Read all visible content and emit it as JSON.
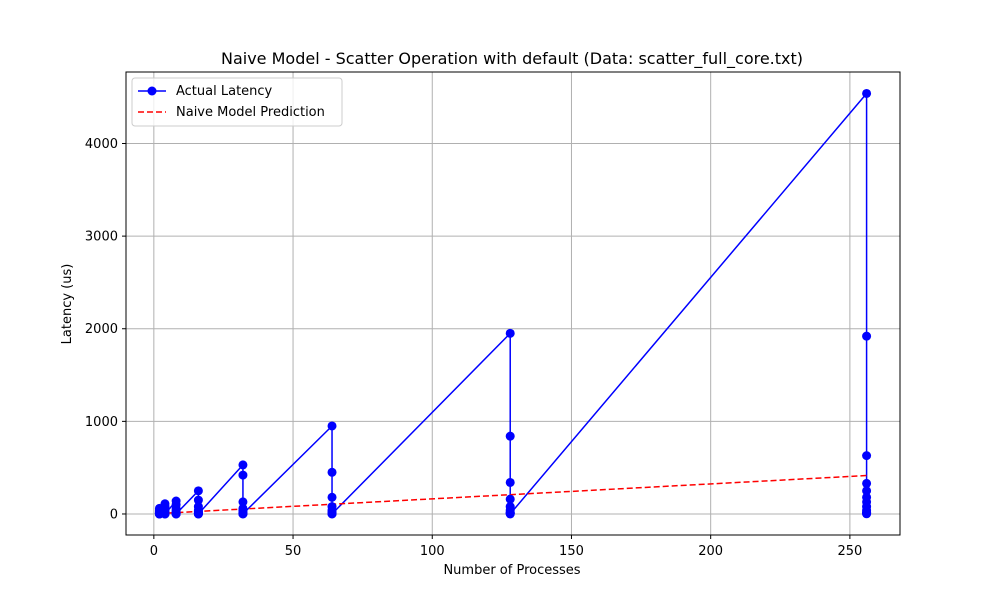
{
  "chart_data": {
    "type": "scatter",
    "title": "Naive Model - Scatter Operation with default (Data: scatter_full_core.txt)",
    "xlabel": "Number of Processes",
    "ylabel": "Latency (us)",
    "xlim": [
      -10,
      268
    ],
    "ylim": [
      -227,
      4772
    ],
    "xticks": [
      0,
      50,
      100,
      150,
      200,
      250
    ],
    "yticks": [
      0,
      1000,
      2000,
      3000,
      4000
    ],
    "grid": true,
    "legend_position": "top-left",
    "colors": {
      "actual": "#0000ff",
      "naive": "#ff0000",
      "grid": "#b0b0b0"
    },
    "series": [
      {
        "name": "Actual Latency",
        "style": "line-marker",
        "x": [
          2,
          2,
          2,
          2,
          2,
          2,
          2,
          2,
          2,
          2,
          2,
          4,
          4,
          4,
          4,
          4,
          4,
          4,
          4,
          4,
          4,
          4,
          8,
          8,
          8,
          8,
          8,
          8,
          8,
          8,
          8,
          8,
          8,
          16,
          16,
          16,
          16,
          16,
          16,
          16,
          16,
          16,
          16,
          16,
          32,
          32,
          32,
          32,
          32,
          32,
          32,
          32,
          32,
          32,
          32,
          64,
          64,
          64,
          64,
          64,
          64,
          64,
          64,
          64,
          64,
          64,
          128,
          128,
          128,
          128,
          128,
          128,
          128,
          128,
          128,
          128,
          128,
          256,
          256,
          256,
          256,
          256,
          256,
          256,
          256,
          256,
          256,
          256,
          256,
          256
        ],
        "y": [
          60,
          40,
          25,
          15,
          10,
          5,
          3,
          2,
          1,
          1,
          1,
          110,
          80,
          50,
          30,
          20,
          10,
          5,
          3,
          2,
          1,
          1,
          140,
          100,
          60,
          35,
          20,
          10,
          6,
          3,
          2,
          1,
          1,
          250,
          150,
          80,
          40,
          25,
          15,
          8,
          4,
          2,
          1,
          1,
          530,
          420,
          130,
          60,
          35,
          20,
          10,
          5,
          3,
          2,
          1,
          950,
          450,
          180,
          80,
          40,
          20,
          10,
          5,
          3,
          2,
          1,
          1950,
          840,
          340,
          160,
          80,
          40,
          20,
          10,
          5,
          3,
          1,
          4540,
          1920,
          630,
          330,
          250,
          180,
          130,
          80,
          40,
          20,
          10,
          5,
          2
        ]
      },
      {
        "name": "Naive Model Prediction",
        "style": "dashed",
        "x": [
          2,
          256
        ],
        "y": [
          5,
          415
        ]
      }
    ]
  }
}
